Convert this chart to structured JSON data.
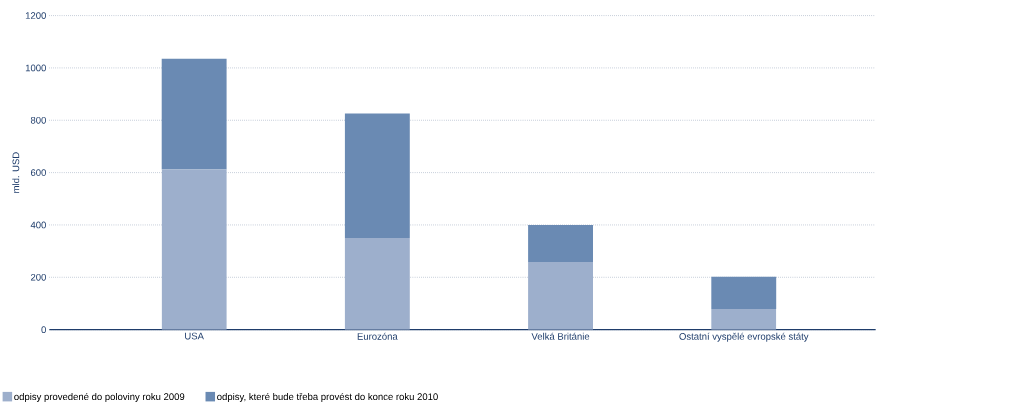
{
  "chart_data": {
    "type": "bar",
    "stacked": true,
    "ylabel": "mld. USD",
    "categories": [
      "USA",
      "Eurozóna",
      "Velká Británie",
      "Ostatní vyspělé evropské státy"
    ],
    "series": [
      {
        "name": "odpisy provedené do poloviny roku 2009",
        "color": "#9dafcc",
        "values": [
          612,
          350,
          258,
          79
        ]
      },
      {
        "name": "odpisy, které bude třeba provést do konce roku 2010",
        "color": "#6a8ab3",
        "values": [
          423,
          476,
          142,
          123
        ]
      }
    ],
    "ylim": [
      0,
      1200
    ],
    "yticks": [
      0,
      200,
      400,
      600,
      800,
      1000,
      1200
    ],
    "grid": "y",
    "legend": "bottom left"
  }
}
